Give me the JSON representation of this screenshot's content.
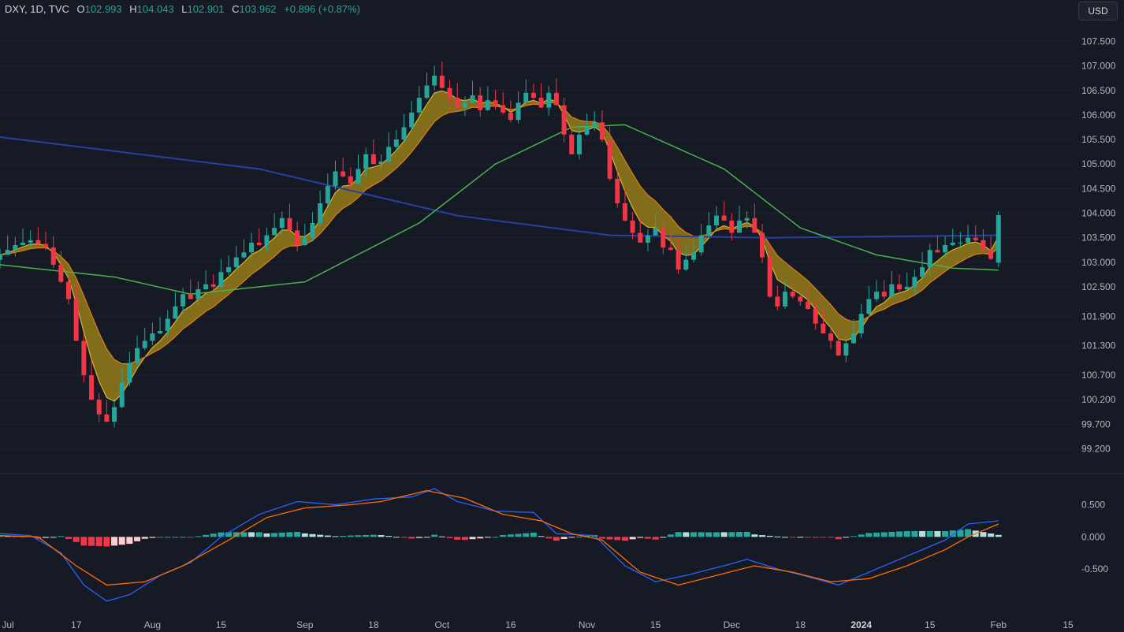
{
  "header": {
    "symbol": "DXY, 1D, TVC",
    "open_label": "O",
    "open": "102.993",
    "high_label": "H",
    "high": "104.043",
    "low_label": "L",
    "low": "102.901",
    "close_label": "C",
    "close": "103.962",
    "change": "+0.896 (+0.87%)"
  },
  "currency_button": "USD",
  "colors": {
    "background": "#161a25",
    "up": "#26a69a",
    "down": "#f23645",
    "ma_long": "#283fa3",
    "ma_mid": "#4caf50",
    "ribbon_fill": "#a68a17",
    "macd_line": "#2962ff",
    "signal_line": "#ff6d00"
  },
  "chart_data": [
    {
      "type": "candlestick",
      "price_axis_ticks": [
        "107.500",
        "107.000",
        "106.500",
        "106.000",
        "105.500",
        "105.000",
        "104.500",
        "104.000",
        "103.500",
        "103.000",
        "102.500",
        "101.900",
        "101.300",
        "100.700",
        "100.200",
        "99.700",
        "99.200"
      ],
      "time_axis_ticks": [
        {
          "label": "Jul",
          "bold": false
        },
        {
          "label": "17",
          "bold": false
        },
        {
          "label": "Aug",
          "bold": false
        },
        {
          "label": "15",
          "bold": false
        },
        {
          "label": "Sep",
          "bold": false
        },
        {
          "label": "18",
          "bold": false
        },
        {
          "label": "Oct",
          "bold": false
        },
        {
          "label": "16",
          "bold": false
        },
        {
          "label": "Nov",
          "bold": false
        },
        {
          "label": "15",
          "bold": false
        },
        {
          "label": "Dec",
          "bold": false
        },
        {
          "label": "18",
          "bold": false
        },
        {
          "label": "2024",
          "bold": true
        },
        {
          "label": "15",
          "bold": false
        },
        {
          "label": "Feb",
          "bold": false
        },
        {
          "label": "15",
          "bold": false
        }
      ],
      "ylim": [
        99.0,
        107.7
      ],
      "close_path": [
        [
          0,
          103.15
        ],
        [
          2,
          103.35
        ],
        [
          4,
          103.45
        ],
        [
          6,
          103.3
        ],
        [
          8,
          102.6
        ],
        [
          9,
          102.25
        ],
        [
          10,
          101.4
        ],
        [
          11,
          100.7
        ],
        [
          12,
          100.2
        ],
        [
          13,
          99.9
        ],
        [
          14,
          99.75
        ],
        [
          15,
          100.05
        ],
        [
          16,
          100.55
        ],
        [
          17,
          100.95
        ],
        [
          18,
          101.25
        ],
        [
          19,
          101.4
        ],
        [
          20,
          101.55
        ],
        [
          21,
          101.6
        ],
        [
          22,
          101.85
        ],
        [
          23,
          102.1
        ],
        [
          24,
          102.35
        ],
        [
          25,
          102.25
        ],
        [
          26,
          102.45
        ],
        [
          27,
          102.55
        ],
        [
          28,
          102.5
        ],
        [
          29,
          102.8
        ],
        [
          30,
          102.9
        ],
        [
          31,
          103.1
        ],
        [
          32,
          103.2
        ],
        [
          33,
          103.4
        ],
        [
          34,
          103.35
        ],
        [
          35,
          103.55
        ],
        [
          36,
          103.7
        ],
        [
          37,
          103.9
        ],
        [
          38,
          103.65
        ],
        [
          39,
          103.35
        ],
        [
          40,
          103.5
        ],
        [
          41,
          103.8
        ],
        [
          42,
          104.2
        ],
        [
          43,
          104.55
        ],
        [
          44,
          104.85
        ],
        [
          45,
          104.75
        ],
        [
          46,
          104.6
        ],
        [
          47,
          104.9
        ],
        [
          48,
          105.2
        ],
        [
          49,
          105.0
        ],
        [
          50,
          105.05
        ],
        [
          51,
          105.35
        ],
        [
          52,
          105.5
        ],
        [
          53,
          105.75
        ],
        [
          54,
          106.05
        ],
        [
          55,
          106.35
        ],
        [
          56,
          106.6
        ],
        [
          57,
          106.8
        ],
        [
          58,
          106.55
        ],
        [
          59,
          106.35
        ],
        [
          60,
          106.15
        ],
        [
          61,
          106.25
        ],
        [
          62,
          106.4
        ],
        [
          63,
          106.1
        ],
        [
          64,
          106.3
        ],
        [
          65,
          106.2
        ],
        [
          66,
          106.05
        ],
        [
          67,
          105.9
        ],
        [
          68,
          106.25
        ],
        [
          69,
          106.45
        ],
        [
          70,
          106.35
        ],
        [
          71,
          106.15
        ],
        [
          72,
          106.45
        ],
        [
          73,
          106.2
        ],
        [
          74,
          105.6
        ],
        [
          75,
          105.2
        ],
        [
          76,
          105.6
        ],
        [
          77,
          105.75
        ],
        [
          78,
          105.85
        ],
        [
          79,
          105.5
        ],
        [
          80,
          104.7
        ],
        [
          81,
          104.2
        ],
        [
          82,
          103.85
        ],
        [
          83,
          103.6
        ],
        [
          84,
          103.4
        ],
        [
          85,
          103.55
        ],
        [
          86,
          103.7
        ],
        [
          87,
          103.3
        ],
        [
          88,
          103.25
        ],
        [
          89,
          102.85
        ],
        [
          90,
          103.05
        ],
        [
          91,
          103.2
        ],
        [
          92,
          103.55
        ],
        [
          93,
          103.75
        ],
        [
          94,
          103.95
        ],
        [
          95,
          103.85
        ],
        [
          96,
          103.6
        ],
        [
          97,
          103.85
        ],
        [
          98,
          103.9
        ],
        [
          99,
          103.6
        ],
        [
          100,
          103.1
        ],
        [
          101,
          102.3
        ],
        [
          102,
          102.1
        ],
        [
          103,
          102.4
        ],
        [
          104,
          102.3
        ],
        [
          105,
          102.2
        ],
        [
          106,
          102.05
        ],
        [
          107,
          101.75
        ],
        [
          108,
          101.55
        ],
        [
          109,
          101.4
        ],
        [
          110,
          101.1
        ],
        [
          111,
          101.35
        ],
        [
          112,
          101.55
        ],
        [
          113,
          101.95
        ],
        [
          114,
          102.25
        ],
        [
          115,
          102.4
        ],
        [
          116,
          102.3
        ],
        [
          117,
          102.55
        ],
        [
          118,
          102.45
        ],
        [
          119,
          102.5
        ],
        [
          120,
          102.7
        ],
        [
          121,
          102.9
        ],
        [
          122,
          103.25
        ],
        [
          123,
          103.2
        ],
        [
          124,
          103.35
        ],
        [
          125,
          103.4
        ],
        [
          126,
          103.4
        ],
        [
          127,
          103.5
        ],
        [
          128,
          103.45
        ],
        [
          129,
          103.25
        ],
        [
          130,
          103.07
        ],
        [
          131,
          103.96
        ]
      ],
      "ma_long_values": [
        [
          0,
          105.55
        ],
        [
          34,
          104.9
        ],
        [
          60,
          103.95
        ],
        [
          80,
          103.55
        ],
        [
          101,
          103.5
        ],
        [
          131,
          103.55
        ]
      ],
      "ma_mid_values": [
        [
          0,
          102.95
        ],
        [
          15,
          102.7
        ],
        [
          25,
          102.35
        ],
        [
          40,
          102.6
        ],
        [
          55,
          103.8
        ],
        [
          65,
          105.0
        ],
        [
          75,
          105.75
        ],
        [
          82,
          105.8
        ],
        [
          95,
          104.9
        ],
        [
          105,
          103.7
        ],
        [
          115,
          103.15
        ],
        [
          125,
          102.88
        ],
        [
          131,
          102.84
        ]
      ]
    },
    {
      "type": "macd",
      "ylim": [
        -1.15,
        0.85
      ],
      "ticks": [
        "0.500",
        "0.000",
        "-0.500"
      ],
      "macd_values": [
        [
          0,
          0.05
        ],
        [
          4,
          0.02
        ],
        [
          8,
          -0.25
        ],
        [
          11,
          -0.75
        ],
        [
          14,
          -1.0
        ],
        [
          17,
          -0.9
        ],
        [
          21,
          -0.6
        ],
        [
          25,
          -0.4
        ],
        [
          29,
          0.0
        ],
        [
          34,
          0.35
        ],
        [
          39,
          0.55
        ],
        [
          44,
          0.5
        ],
        [
          49,
          0.59
        ],
        [
          54,
          0.62
        ],
        [
          57,
          0.75
        ],
        [
          60,
          0.55
        ],
        [
          65,
          0.4
        ],
        [
          70,
          0.38
        ],
        [
          73,
          0.05
        ],
        [
          78,
          0.02
        ],
        [
          82,
          -0.45
        ],
        [
          86,
          -0.7
        ],
        [
          90,
          -0.6
        ],
        [
          95,
          -0.45
        ],
        [
          98,
          -0.35
        ],
        [
          102,
          -0.5
        ],
        [
          106,
          -0.62
        ],
        [
          110,
          -0.75
        ],
        [
          114,
          -0.55
        ],
        [
          119,
          -0.3
        ],
        [
          124,
          -0.05
        ],
        [
          127,
          0.2
        ],
        [
          131,
          0.25
        ]
      ],
      "signal_values": [
        [
          0,
          0.02
        ],
        [
          5,
          0.0
        ],
        [
          10,
          -0.45
        ],
        [
          14,
          -0.75
        ],
        [
          19,
          -0.7
        ],
        [
          24,
          -0.45
        ],
        [
          30,
          -0.05
        ],
        [
          35,
          0.3
        ],
        [
          40,
          0.45
        ],
        [
          46,
          0.5
        ],
        [
          50,
          0.55
        ],
        [
          56,
          0.72
        ],
        [
          61,
          0.6
        ],
        [
          66,
          0.35
        ],
        [
          71,
          0.25
        ],
        [
          75,
          0.05
        ],
        [
          79,
          -0.05
        ],
        [
          84,
          -0.55
        ],
        [
          89,
          -0.75
        ],
        [
          94,
          -0.6
        ],
        [
          99,
          -0.45
        ],
        [
          104,
          -0.55
        ],
        [
          109,
          -0.7
        ],
        [
          114,
          -0.65
        ],
        [
          119,
          -0.45
        ],
        [
          124,
          -0.2
        ],
        [
          127,
          0.0
        ],
        [
          131,
          0.2
        ]
      ]
    }
  ]
}
